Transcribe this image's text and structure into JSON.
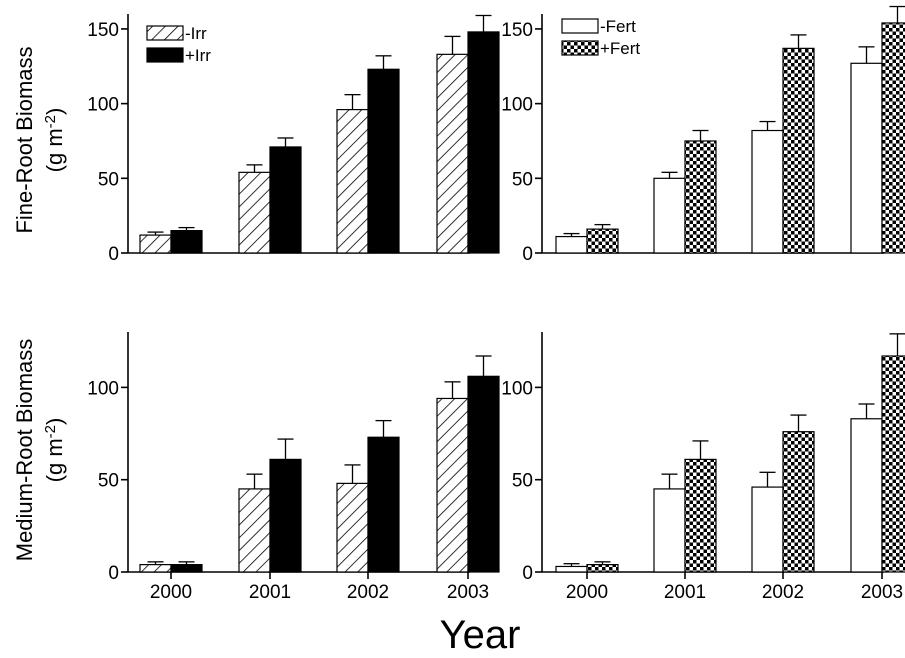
{
  "figure": {
    "xlabel": "Year",
    "ylabel_top_1": "Fine-Root Biomass",
    "ylabel_top_2": "(g m",
    "ylabel_top_sup": "-2",
    "ylabel_top_3": ")",
    "ylabel_bottom_1": "Medium-Root Biomass",
    "ylabel_bottom_2": "(g m",
    "ylabel_bottom_sup": "-2",
    "ylabel_bottom_3": ")"
  },
  "chart_data": [
    {
      "type": "bar",
      "panel": "top-left",
      "categories": [
        "2000",
        "2001",
        "2002",
        "2003"
      ],
      "ylim": [
        0,
        160
      ],
      "yticks": [
        0,
        50,
        100,
        150
      ],
      "legend_position": "top-left",
      "series": [
        {
          "name": "-Irr",
          "fill": "hatch",
          "values": [
            12,
            54,
            96,
            133
          ],
          "errors": [
            2,
            5,
            10,
            12
          ]
        },
        {
          "name": "+Irr",
          "fill": "solid",
          "values": [
            15,
            71,
            123,
            148
          ],
          "errors": [
            2,
            6,
            9,
            11
          ]
        }
      ]
    },
    {
      "type": "bar",
      "panel": "top-right",
      "categories": [
        "2000",
        "2001",
        "2002",
        "2003"
      ],
      "ylim": [
        0,
        160
      ],
      "yticks": [
        0,
        50,
        100,
        150
      ],
      "legend_position": "top-left",
      "series": [
        {
          "name": "-Fert",
          "fill": "white",
          "values": [
            11,
            50,
            82,
            127
          ],
          "errors": [
            2,
            4,
            6,
            11
          ]
        },
        {
          "name": "+Fert",
          "fill": "checker",
          "values": [
            16,
            75,
            137,
            154
          ],
          "errors": [
            3,
            7,
            9,
            11
          ]
        }
      ]
    },
    {
      "type": "bar",
      "panel": "bottom-left",
      "categories": [
        "2000",
        "2001",
        "2002",
        "2003"
      ],
      "ylim": [
        0,
        130
      ],
      "yticks": [
        0,
        50,
        100
      ],
      "series": [
        {
          "name": "-Irr",
          "fill": "hatch",
          "values": [
            4,
            45,
            48,
            94
          ],
          "errors": [
            1.5,
            8,
            10,
            9
          ]
        },
        {
          "name": "+Irr",
          "fill": "solid",
          "values": [
            4,
            61,
            73,
            106
          ],
          "errors": [
            1.5,
            11,
            9,
            11
          ]
        }
      ]
    },
    {
      "type": "bar",
      "panel": "bottom-right",
      "categories": [
        "2000",
        "2001",
        "2002",
        "2003"
      ],
      "ylim": [
        0,
        130
      ],
      "yticks": [
        0,
        50,
        100
      ],
      "series": [
        {
          "name": "-Fert",
          "fill": "white",
          "values": [
            3,
            45,
            46,
            83
          ],
          "errors": [
            1.5,
            8,
            8,
            8
          ]
        },
        {
          "name": "+Fert",
          "fill": "checker",
          "values": [
            4,
            61,
            76,
            117
          ],
          "errors": [
            1.5,
            10,
            9,
            12
          ]
        }
      ]
    }
  ]
}
